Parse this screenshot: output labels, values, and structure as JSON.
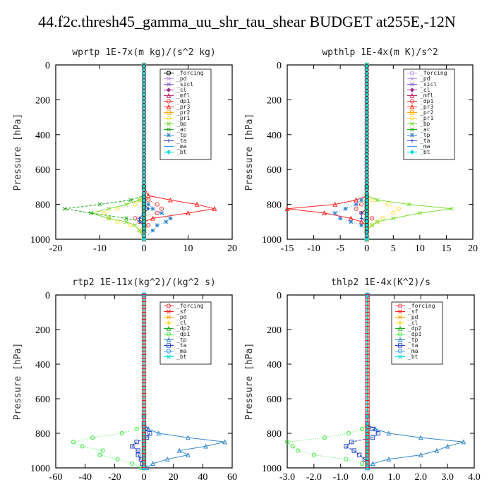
{
  "title": "44.f2c.thresh45_gamma_uu_shr_tau_shear  BUDGET at255E,-12N",
  "chart_data": [
    {
      "type": "line",
      "title": "wprtp  1E-7x(m kg)/(s^2 kg)",
      "ylabel": "Pressure [hPa]",
      "xlim": [
        -20,
        20
      ],
      "xticks": [
        "-20",
        "-10",
        "0",
        "10",
        "20"
      ],
      "ylim": [
        1000,
        0
      ],
      "yticks": [
        "0",
        "200",
        "400",
        "600",
        "800",
        "1000"
      ],
      "y": [
        1000,
        950,
        920,
        900,
        880,
        850,
        825,
        800,
        775,
        750,
        700,
        0
      ],
      "series": [
        {
          "name": "_forcing",
          "color": "#000000",
          "values": [
            0,
            0,
            0,
            0,
            0,
            0,
            0,
            0,
            0,
            0,
            0,
            0
          ]
        },
        {
          "name": "_pd",
          "color": "#bb99ee",
          "values": [
            0,
            0,
            0,
            0,
            0,
            0,
            0,
            0,
            0,
            0,
            0,
            0
          ]
        },
        {
          "name": "_sicl",
          "color": "#8866cc",
          "values": [
            0,
            0,
            0,
            0,
            0,
            0,
            0,
            0,
            0,
            0,
            0,
            0
          ]
        },
        {
          "name": "_cl",
          "color": "#993399",
          "values": [
            0,
            0,
            0,
            0,
            0,
            0,
            0,
            0,
            0,
            0,
            0,
            0
          ]
        },
        {
          "name": "_mfl",
          "color": "#cc2266",
          "values": [
            0,
            0,
            0,
            0,
            0,
            0,
            0,
            0,
            0,
            0,
            0,
            0
          ]
        },
        {
          "name": "_dp1",
          "color": "#ee4444",
          "values": [
            0,
            0,
            1,
            -1,
            -2,
            3,
            4,
            3,
            1,
            0,
            0,
            0
          ]
        },
        {
          "name": "_pr3",
          "color": "#ff2222",
          "values": [
            0,
            0,
            0,
            0,
            2,
            10,
            16,
            12,
            6,
            1,
            0,
            0
          ]
        },
        {
          "name": "_pr2",
          "color": "#ffaa00",
          "values": [
            0,
            0,
            0,
            0,
            0,
            0,
            0,
            0,
            0,
            0,
            0,
            0
          ]
        },
        {
          "name": "_pr1",
          "color": "#ffdd44",
          "values": [
            0,
            -1,
            -3,
            -6,
            -8,
            -9,
            -6,
            -2,
            -1,
            0,
            0,
            0
          ]
        },
        {
          "name": "_bp",
          "color": "#77dd33",
          "values": [
            0,
            -1,
            -2,
            -4,
            -8,
            -12,
            -8,
            -4,
            -1,
            0,
            0,
            0
          ]
        },
        {
          "name": "_ac",
          "color": "#22aa22",
          "values": [
            0,
            0,
            0,
            0,
            -4,
            -12,
            -18,
            -10,
            -3,
            0,
            0,
            0
          ]
        },
        {
          "name": "_tp",
          "color": "#3388cc",
          "values": [
            0,
            2,
            3,
            5,
            6,
            4,
            2,
            1,
            0,
            0,
            0,
            0
          ]
        },
        {
          "name": "_ta",
          "color": "#2244cc",
          "values": [
            0,
            0,
            0,
            -1,
            -1,
            0,
            1,
            0,
            0,
            0,
            0,
            0
          ]
        },
        {
          "name": "_ma",
          "color": "#3399ff",
          "values": [
            0,
            0,
            0,
            0,
            0,
            0,
            0,
            0,
            0,
            0,
            0,
            0
          ]
        },
        {
          "name": "_bt",
          "color": "#00dddd",
          "values": [
            0,
            0,
            0,
            0,
            0,
            0,
            0,
            0,
            0,
            0,
            0,
            0
          ]
        }
      ]
    },
    {
      "type": "line",
      "title": "wpthlp  1E-4x(m K)/s^2",
      "ylabel": "Pressure [hPa]",
      "xlim": [
        -15,
        20
      ],
      "xticks": [
        "-15",
        "-10",
        "-5",
        "0",
        "5",
        "10",
        "15",
        "20"
      ],
      "ylim": [
        1000,
        0
      ],
      "yticks": [
        "0",
        "200",
        "400",
        "600",
        "800",
        "1000"
      ],
      "y": [
        1000,
        950,
        920,
        900,
        880,
        850,
        825,
        800,
        775,
        750,
        700,
        0
      ],
      "series": [
        {
          "name": "_forcing",
          "color": "#bb99ee",
          "values": [
            0,
            0,
            0,
            0,
            0,
            0,
            0,
            0,
            0,
            0,
            0,
            0
          ]
        },
        {
          "name": "_pd",
          "color": "#bb99ee",
          "values": [
            0,
            0,
            0,
            0,
            0,
            0,
            0,
            0,
            0,
            0,
            0,
            0
          ]
        },
        {
          "name": "_sicl",
          "color": "#8866cc",
          "values": [
            0,
            0,
            0,
            0,
            0,
            0,
            0,
            0,
            0,
            0,
            0,
            0
          ]
        },
        {
          "name": "_cl",
          "color": "#993399",
          "values": [
            0,
            0,
            0,
            0,
            0,
            0,
            0,
            0,
            0,
            0,
            0,
            0
          ]
        },
        {
          "name": "_mfl",
          "color": "#cc2266",
          "values": [
            0,
            0,
            0,
            0,
            0,
            0,
            0,
            0,
            0,
            0,
            0,
            0
          ]
        },
        {
          "name": "_dp1",
          "color": "#ee4444",
          "values": [
            0,
            0,
            0,
            0,
            1,
            -1,
            -2,
            -1,
            0,
            0,
            0,
            0
          ]
        },
        {
          "name": "_pr3",
          "color": "#ff2222",
          "values": [
            0,
            0,
            0,
            -1,
            -3,
            -8,
            -15,
            -6,
            -2,
            0,
            0,
            0
          ]
        },
        {
          "name": "_pr2",
          "color": "#ffaa00",
          "values": [
            0,
            0,
            0,
            0,
            0,
            0,
            0,
            0,
            0,
            0,
            0,
            0
          ]
        },
        {
          "name": "_pr1",
          "color": "#ffdd44",
          "values": [
            0,
            0,
            1,
            2,
            3,
            5,
            6,
            4,
            1,
            0,
            0,
            0
          ]
        },
        {
          "name": "_bp",
          "color": "#77dd33",
          "values": [
            0,
            0,
            1,
            2,
            5,
            10,
            16,
            8,
            2,
            0,
            0,
            0
          ]
        },
        {
          "name": "_ac",
          "color": "#22aa22",
          "values": [
            0,
            0,
            0,
            0,
            0,
            0,
            0,
            0,
            0,
            0,
            0,
            0
          ]
        },
        {
          "name": "_tp",
          "color": "#3388cc",
          "values": [
            0,
            0,
            -1,
            -3,
            -5,
            -6,
            -4,
            -2,
            -1,
            0,
            0,
            0
          ]
        },
        {
          "name": "_ta",
          "color": "#2244cc",
          "values": [
            0,
            0,
            0,
            0,
            -1,
            -1,
            0,
            0,
            0,
            0,
            0,
            0
          ]
        },
        {
          "name": "_ma",
          "color": "#3399ff",
          "values": [
            0,
            0,
            0,
            0,
            0,
            0,
            0,
            0,
            0,
            0,
            0,
            0
          ]
        },
        {
          "name": "_bt",
          "color": "#00dddd",
          "values": [
            0,
            0,
            0,
            0,
            0,
            0,
            0,
            0,
            0,
            0,
            0,
            0
          ]
        }
      ]
    },
    {
      "type": "line",
      "title": "rtp2  1E-11x(kg^2)/(kg^2 s)",
      "ylabel": "Pressure [hPa]",
      "xlim": [
        -60,
        60
      ],
      "xticks": [
        "-60",
        "-40",
        "-20",
        "0",
        "20",
        "40",
        "60"
      ],
      "ylim": [
        1000,
        0
      ],
      "yticks": [
        "0",
        "200",
        "400",
        "600",
        "800",
        "1000"
      ],
      "y": [
        1000,
        975,
        950,
        925,
        900,
        875,
        850,
        825,
        800,
        775,
        750,
        700,
        0
      ],
      "series": [
        {
          "name": "_forcing",
          "color": "#ee4444",
          "values": [
            0,
            0,
            0,
            0,
            0,
            0,
            0,
            0,
            0,
            0,
            0,
            0,
            0
          ]
        },
        {
          "name": "_sf",
          "color": "#ff2222",
          "values": [
            0,
            0,
            0,
            0,
            0,
            0,
            0,
            0,
            0,
            0,
            0,
            0,
            0
          ]
        },
        {
          "name": "_pd",
          "color": "#ffaa00",
          "values": [
            0,
            0,
            0,
            0,
            0,
            0,
            0,
            0,
            0,
            0,
            0,
            0,
            0
          ]
        },
        {
          "name": "_cl",
          "color": "#ffdd44",
          "values": [
            0,
            0,
            0,
            0,
            0,
            0,
            0,
            0,
            0,
            0,
            0,
            0,
            0
          ]
        },
        {
          "name": "_dp2",
          "color": "#22aa22",
          "values": [
            0,
            0,
            0,
            0,
            0,
            0,
            0,
            0,
            0,
            0,
            0,
            0,
            0
          ]
        },
        {
          "name": "_dp1",
          "color": "#44ee44",
          "values": [
            -2,
            -8,
            -18,
            -30,
            -28,
            -42,
            -48,
            -35,
            -15,
            -5,
            0,
            0,
            0
          ]
        },
        {
          "name": "_tp",
          "color": "#3388cc",
          "values": [
            2,
            6,
            16,
            30,
            24,
            42,
            55,
            30,
            10,
            3,
            0,
            0,
            0
          ]
        },
        {
          "name": "_ta",
          "color": "#2244cc",
          "values": [
            0,
            -1,
            -2,
            -4,
            -4,
            -8,
            -5,
            2,
            4,
            1,
            0,
            0,
            0
          ]
        },
        {
          "name": "_ma",
          "color": "#3399ff",
          "values": [
            0,
            0,
            0,
            0,
            0,
            0,
            0,
            0,
            0,
            0,
            0,
            0,
            0
          ]
        },
        {
          "name": "_bt",
          "color": "#00dddd",
          "values": [
            0,
            0,
            0,
            0,
            0,
            0,
            0,
            0,
            0,
            0,
            0,
            0,
            0
          ]
        }
      ]
    },
    {
      "type": "line",
      "title": "thlp2  1E-4x(K^2)/s",
      "ylabel": "Pressure [hPa]",
      "xlim": [
        -3,
        4
      ],
      "xticks": [
        "-3.0",
        "-2.0",
        "-1.0",
        "0.0",
        "1.0",
        "2.0",
        "3.0",
        "4.0"
      ],
      "ylim": [
        1000,
        0
      ],
      "yticks": [
        "0",
        "200",
        "400",
        "600",
        "800",
        "1000"
      ],
      "y": [
        1000,
        975,
        950,
        925,
        900,
        875,
        850,
        825,
        800,
        775,
        750,
        700,
        0
      ],
      "series": [
        {
          "name": "_forcing",
          "color": "#ee4444",
          "values": [
            0,
            0,
            0,
            0,
            0,
            0,
            0,
            0,
            0,
            0,
            0,
            0,
            0
          ]
        },
        {
          "name": "_sf",
          "color": "#ff2222",
          "values": [
            0,
            0,
            0,
            0,
            0,
            0,
            0,
            0,
            0,
            0,
            0,
            0,
            0
          ]
        },
        {
          "name": "_pd",
          "color": "#ffaa00",
          "values": [
            0,
            0,
            0,
            0,
            0,
            0,
            0,
            0,
            0,
            0,
            0,
            0,
            0
          ]
        },
        {
          "name": "_cl",
          "color": "#ffdd44",
          "values": [
            0,
            0,
            0,
            0,
            0,
            0,
            0,
            0,
            0,
            0,
            0,
            0,
            0
          ]
        },
        {
          "name": "_dp2",
          "color": "#22aa22",
          "values": [
            0,
            0,
            0,
            0,
            0,
            0,
            0,
            0,
            0,
            0,
            0,
            0,
            0
          ]
        },
        {
          "name": "_dp1",
          "color": "#44ee44",
          "values": [
            0,
            -0.2,
            -0.8,
            -2.0,
            -2.6,
            -2.8,
            -3.0,
            -1.6,
            -0.7,
            -0.2,
            0,
            0,
            0
          ]
        },
        {
          "name": "_tp",
          "color": "#3388cc",
          "values": [
            0,
            0.2,
            0.8,
            2.0,
            2.6,
            3.0,
            3.6,
            2.0,
            0.8,
            0.3,
            0,
            0,
            0
          ]
        },
        {
          "name": "_ta",
          "color": "#2244cc",
          "values": [
            0,
            0,
            -0.1,
            -0.3,
            -0.5,
            -0.8,
            -0.6,
            0.2,
            0.4,
            0.2,
            0,
            0,
            0
          ]
        },
        {
          "name": "_ma",
          "color": "#3399ff",
          "values": [
            0,
            0,
            0,
            0,
            0,
            0,
            0,
            0,
            0,
            0,
            0,
            0,
            0
          ]
        },
        {
          "name": "_bt",
          "color": "#00dddd",
          "values": [
            0,
            0,
            0,
            0,
            0,
            0,
            0,
            0,
            0,
            0,
            0,
            0,
            0
          ]
        }
      ]
    }
  ]
}
